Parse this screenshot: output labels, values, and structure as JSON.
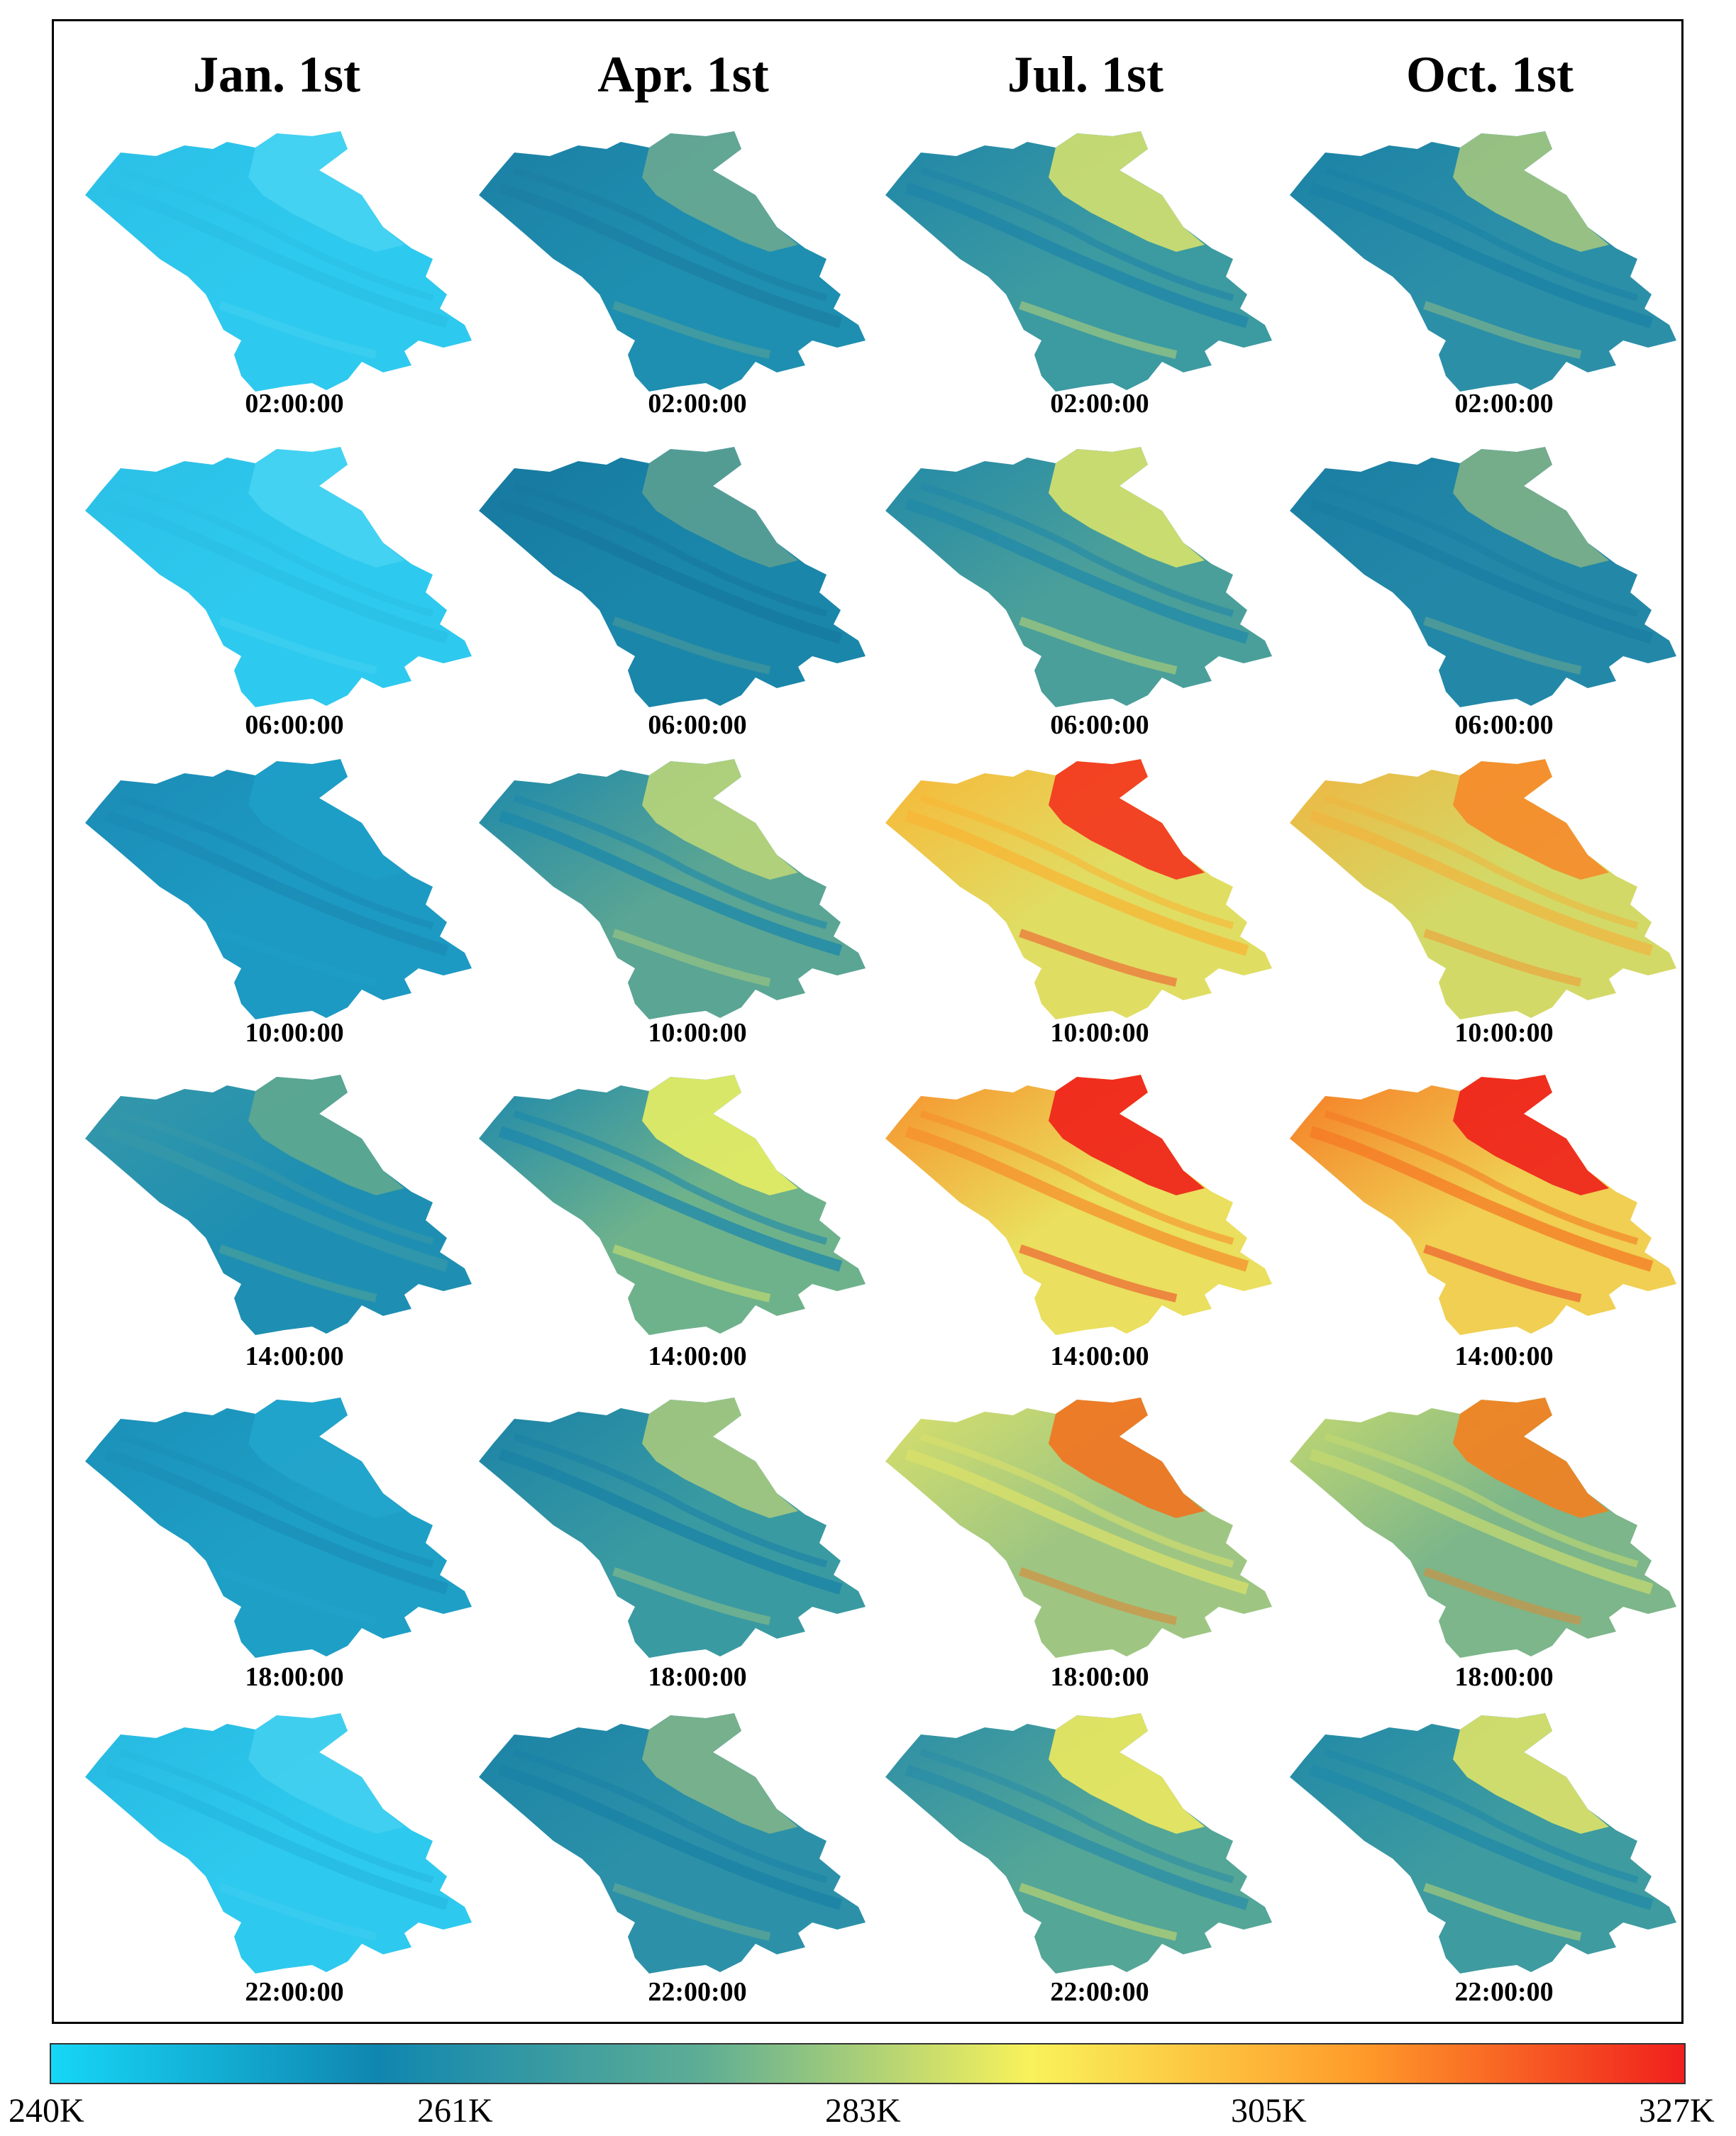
{
  "columns": [
    {
      "title": "Jan. 1st",
      "key": "jan"
    },
    {
      "title": "Apr. 1st",
      "key": "apr"
    },
    {
      "title": "Jul. 1st",
      "key": "jul"
    },
    {
      "title": "Oct. 1st",
      "key": "oct"
    }
  ],
  "times": [
    "02:00:00",
    "06:00:00",
    "10:00:00",
    "14:00:00",
    "18:00:00",
    "22:00:00"
  ],
  "colorbar": {
    "ticks": [
      "240K",
      "261K",
      "283K",
      "305K",
      "327K"
    ],
    "stops": [
      "#16d6f7",
      "#0f86b0",
      "#5fae94",
      "#f9f25a",
      "#ff9c2a",
      "#f0201d"
    ]
  },
  "panels": {
    "jan": [
      {
        "base": "#2ec9ee",
        "warm": "#46d3f2",
        "accent": "#2bbfe6"
      },
      {
        "base": "#2ec9ee",
        "warm": "#46d3f2",
        "accent": "#2bbfe6"
      },
      {
        "base": "#1d9ac3",
        "warm": "#1e9fc8",
        "accent": "#1b8bb4"
      },
      {
        "base": "#1e8fb2",
        "warm": "#5fa88f",
        "accent": "#3798a8"
      },
      {
        "base": "#1e9fc6",
        "warm": "#22a5cc",
        "accent": "#1b8fb7"
      },
      {
        "base": "#2ec9ee",
        "warm": "#43cff0",
        "accent": "#26b8e0"
      }
    ],
    "apr": [
      {
        "base": "#1e8fb0",
        "warm": "#6aa891",
        "accent": "#1c7fa4"
      },
      {
        "base": "#1a86aa",
        "warm": "#5a9f92",
        "accent": "#17789f"
      },
      {
        "base": "#5aa594",
        "warm": "#b9d579",
        "accent": "#1c88ab"
      },
      {
        "base": "#6eb28c",
        "warm": "#e8ee63",
        "accent": "#1d88ac"
      },
      {
        "base": "#3a9aa2",
        "warm": "#a6c97e",
        "accent": "#1a82a6"
      },
      {
        "base": "#2c91a8",
        "warm": "#7fb489",
        "accent": "#1a82a6"
      }
    ],
    "jul": [
      {
        "base": "#3c9aa1",
        "warm": "#d3e06e",
        "accent": "#1f86a8"
      },
      {
        "base": "#4a9f9a",
        "warm": "#d7e26b",
        "accent": "#2189a8"
      },
      {
        "base": "#e0dd63",
        "warm": "#f3331e",
        "accent": "#f8b636"
      },
      {
        "base": "#eadf5e",
        "warm": "#ef1e1a",
        "accent": "#f6902c"
      },
      {
        "base": "#9ec682",
        "warm": "#f2721f",
        "accent": "#d9e06a"
      },
      {
        "base": "#54a697",
        "warm": "#f0ea5d",
        "accent": "#2b8ea7"
      }
    ],
    "oct": [
      {
        "base": "#2c8fa8",
        "warm": "#a3c67f",
        "accent": "#1b82a6"
      },
      {
        "base": "#2388a8",
        "warm": "#7eb087",
        "accent": "#1a7ea3"
      },
      {
        "base": "#d3d967",
        "warm": "#f68a2a",
        "accent": "#efb540"
      },
      {
        "base": "#f0cf52",
        "warm": "#ee1f1b",
        "accent": "#f57a24"
      },
      {
        "base": "#7cb68a",
        "warm": "#f4801f",
        "accent": "#c3d870"
      },
      {
        "base": "#3e9ba0",
        "warm": "#dfe367",
        "accent": "#2089a8"
      }
    ]
  }
}
